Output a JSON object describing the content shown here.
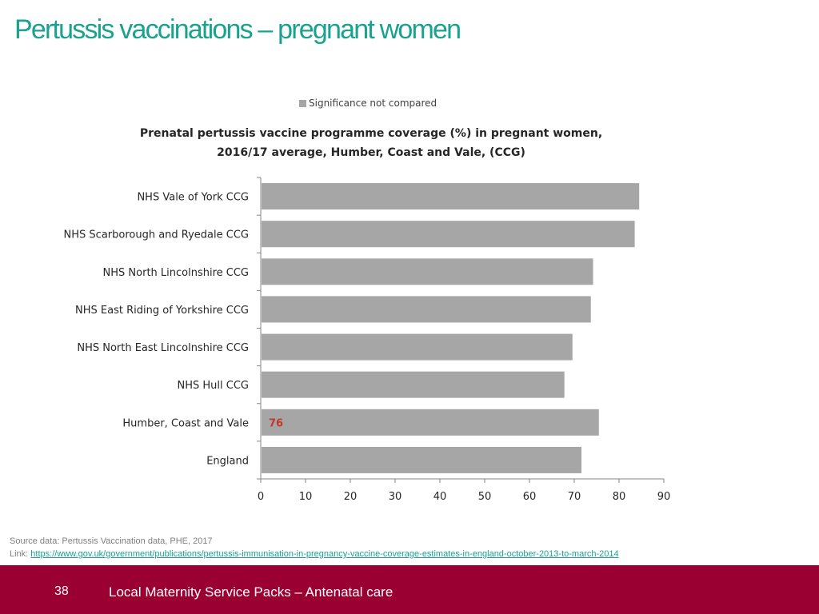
{
  "slide": {
    "title": "Pertussis vaccinations – pregnant women"
  },
  "legend": {
    "label": "Significance not compared",
    "color": "#a6a6a6"
  },
  "chart_data": {
    "type": "bar",
    "orientation": "horizontal",
    "title": "Prenatal pertussis vaccine programme coverage (%) in pregnant women, 2016/17 average, Humber, Coast and Vale, (CCG)",
    "title_lines": [
      "Prenatal pertussis vaccine programme coverage (%) in pregnant women,",
      "2016/17 average, Humber, Coast and Vale, (CCG)"
    ],
    "categories": [
      "NHS Vale of York CCG",
      "NHS Scarborough and Ryedale CCG",
      "NHS North Lincolnshire CCG",
      "NHS East Riding of Yorkshire CCG",
      "NHS North East Lincolnshire CCG",
      "NHS Hull CCG",
      "Humber, Coast and Vale",
      "England"
    ],
    "values": [
      84.5,
      83.5,
      74.2,
      73.7,
      69.6,
      67.8,
      75.5,
      71.6
    ],
    "data_labels": [
      "",
      "",
      "",
      "",
      "",
      "",
      "76",
      ""
    ],
    "xlim": [
      0,
      90
    ],
    "ticks": [
      0,
      10,
      20,
      30,
      40,
      50,
      60,
      70,
      80,
      90
    ],
    "grid": false,
    "legend_position": "top",
    "bar_color": "#a6a6a6",
    "label_color": "#c0392b"
  },
  "source": {
    "text": "Source data: Pertussis Vaccination data, PHE, 2017",
    "link_prefix": "Link: ",
    "link_text": "https://www.gov.uk/government/publications/pertussis-immunisation-in-pregnancy-vaccine-coverage-estimates-in-england-october-2013-to-march-2014"
  },
  "footer": {
    "page_number": "38",
    "text": "Local Maternity Service Packs – Antenatal care",
    "color": "#9b0032"
  }
}
